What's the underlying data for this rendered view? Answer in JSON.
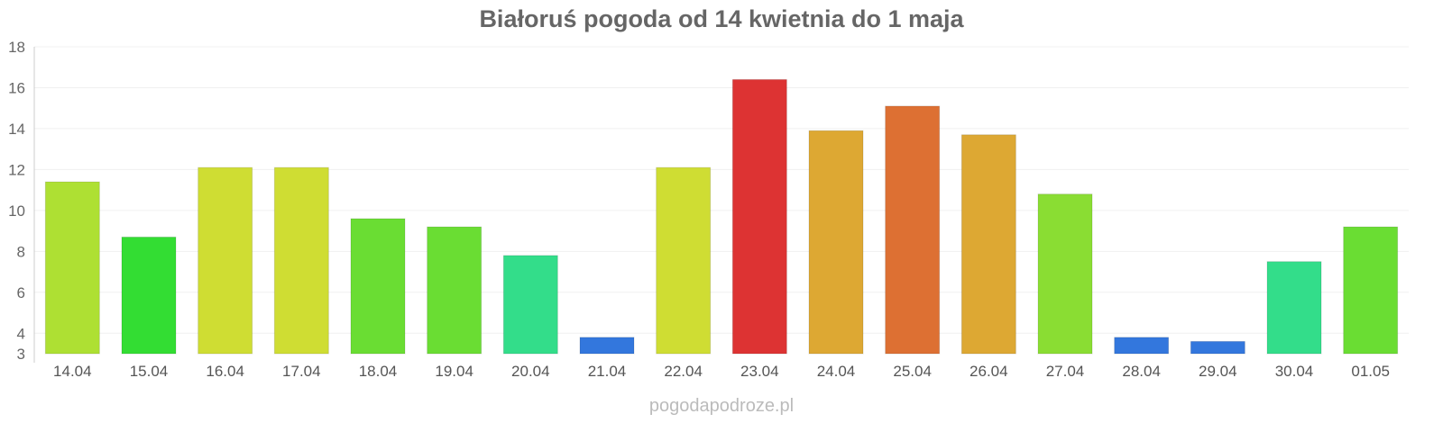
{
  "chart_data": {
    "type": "bar",
    "title": "Białoruś pogoda od 14 kwietnia do 1 maja",
    "xlabel": "",
    "ylabel": "",
    "ylim": [
      3,
      18
    ],
    "yticks": [
      3,
      4,
      6,
      8,
      10,
      12,
      14,
      16,
      18
    ],
    "grid": true,
    "categories": [
      "14.04",
      "15.04",
      "16.04",
      "17.04",
      "18.04",
      "19.04",
      "20.04",
      "21.04",
      "22.04",
      "23.04",
      "24.04",
      "25.04",
      "26.04",
      "27.04",
      "28.04",
      "29.04",
      "30.04",
      "01.05"
    ],
    "values": [
      11.4,
      8.7,
      12.1,
      12.1,
      9.6,
      9.2,
      7.8,
      3.8,
      12.1,
      16.4,
      13.9,
      15.1,
      13.7,
      10.8,
      3.8,
      3.6,
      7.5,
      9.2
    ],
    "colors": [
      "#aee033",
      "#33dd33",
      "#cfdd33",
      "#cfdd33",
      "#6add33",
      "#6add33",
      "#33dd8a",
      "#3377dd",
      "#cfdd33",
      "#dd3333",
      "#dda833",
      "#dd7033",
      "#dda833",
      "#8add33",
      "#3377dd",
      "#3377dd",
      "#33dd8a",
      "#6add33"
    ]
  },
  "footer": "pogodapodroze.pl"
}
